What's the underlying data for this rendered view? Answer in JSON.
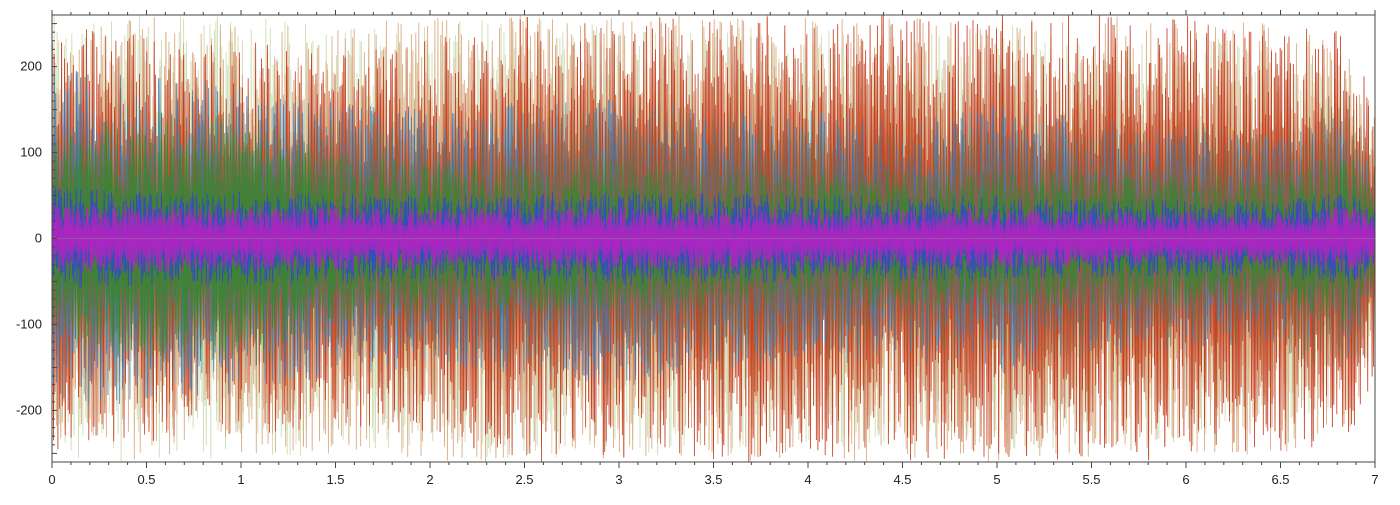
{
  "chart_data": {
    "type": "line",
    "title": "",
    "xlabel": "",
    "ylabel": "",
    "xlim": [
      0,
      7
    ],
    "ylim": [
      -260,
      260
    ],
    "x_ticks": [
      0,
      0.5,
      1,
      1.5,
      2,
      2.5,
      3,
      3.5,
      4,
      4.5,
      5,
      5.5,
      6,
      6.5,
      7
    ],
    "x_tick_labels": [
      "0",
      "0.5",
      "1",
      "1.5",
      "2",
      "2.5",
      "3",
      "3.5",
      "4",
      "4.5",
      "5",
      "5.5",
      "6",
      "6.5",
      "7"
    ],
    "y_ticks": [
      200,
      100,
      0,
      -100,
      -200
    ],
    "y_tick_labels": [
      "200",
      "100",
      "0",
      "-100",
      "-200"
    ],
    "grid": false,
    "legend": "none",
    "series": [
      {
        "color": "#c8d8a8",
        "envelope_x": [
          0,
          0.5,
          1,
          1.5,
          2,
          2.5,
          3,
          3.5,
          4,
          4.5,
          5,
          5.5,
          6,
          6.5,
          6.85,
          7
        ],
        "envelope_amplitude": [
          260,
          260,
          260,
          250,
          250,
          260,
          260,
          250,
          250,
          240,
          250,
          240,
          240,
          220,
          200,
          120
        ]
      },
      {
        "color": "#d4a070",
        "envelope_x": [
          0,
          0.5,
          1,
          1.5,
          2,
          2.5,
          3,
          3.5,
          4,
          4.5,
          5,
          5.5,
          6,
          6.5,
          6.85,
          7
        ],
        "envelope_amplitude": [
          240,
          260,
          250,
          250,
          260,
          260,
          260,
          260,
          260,
          260,
          260,
          260,
          255,
          250,
          230,
          140
        ]
      },
      {
        "color": "#c03010",
        "envelope_x": [
          0,
          0.5,
          1,
          1.5,
          2,
          2.5,
          3,
          3.5,
          4,
          4.5,
          5,
          5.5,
          6,
          6.5,
          6.85,
          7
        ],
        "envelope_amplitude": [
          250,
          240,
          230,
          220,
          230,
          260,
          260,
          260,
          260,
          260,
          260,
          260,
          260,
          250,
          240,
          160
        ]
      },
      {
        "color": "#3a7ab0",
        "envelope_x": [
          0,
          0.5,
          1,
          1.5,
          2,
          2.5,
          3,
          3.5,
          4,
          4.5,
          5,
          5.5,
          6,
          6.5,
          6.85,
          7
        ],
        "envelope_amplitude": [
          200,
          190,
          180,
          160,
          150,
          160,
          170,
          150,
          150,
          140,
          160,
          140,
          130,
          120,
          140,
          80
        ]
      },
      {
        "color": "#8a6040",
        "envelope_x": [
          0,
          0.5,
          1,
          1.5,
          2,
          2.5,
          3,
          3.5,
          4,
          4.5,
          5,
          5.5,
          6,
          6.5,
          6.85,
          7
        ],
        "envelope_amplitude": [
          130,
          140,
          150,
          140,
          130,
          150,
          160,
          150,
          140,
          130,
          140,
          140,
          130,
          130,
          180,
          100
        ]
      },
      {
        "color": "#2e8b2e",
        "envelope_x": [
          0,
          0.5,
          1,
          1.5,
          2,
          2.5,
          3,
          3.5,
          4,
          4.5,
          5,
          5.5,
          6,
          6.5,
          6.85,
          7
        ],
        "envelope_amplitude": [
          120,
          150,
          140,
          100,
          90,
          90,
          90,
          80,
          80,
          80,
          80,
          80,
          80,
          80,
          100,
          60
        ]
      },
      {
        "color": "#3040e0",
        "envelope_x": [
          0,
          0.5,
          1,
          1.5,
          2,
          2.5,
          3,
          3.5,
          4,
          4.5,
          5,
          5.5,
          6,
          6.5,
          6.85,
          7
        ],
        "envelope_amplitude": [
          60,
          55,
          55,
          55,
          50,
          55,
          55,
          55,
          50,
          50,
          50,
          45,
          45,
          45,
          55,
          40
        ]
      },
      {
        "color": "#c020c0",
        "envelope_x": [
          0,
          0.5,
          1,
          1.5,
          2,
          2.5,
          3,
          3.5,
          4,
          4.5,
          5,
          5.5,
          6,
          6.5,
          6.85,
          7
        ],
        "envelope_amplitude": [
          40,
          40,
          38,
          38,
          35,
          38,
          38,
          38,
          35,
          35,
          35,
          32,
          32,
          32,
          40,
          30
        ]
      }
    ]
  }
}
